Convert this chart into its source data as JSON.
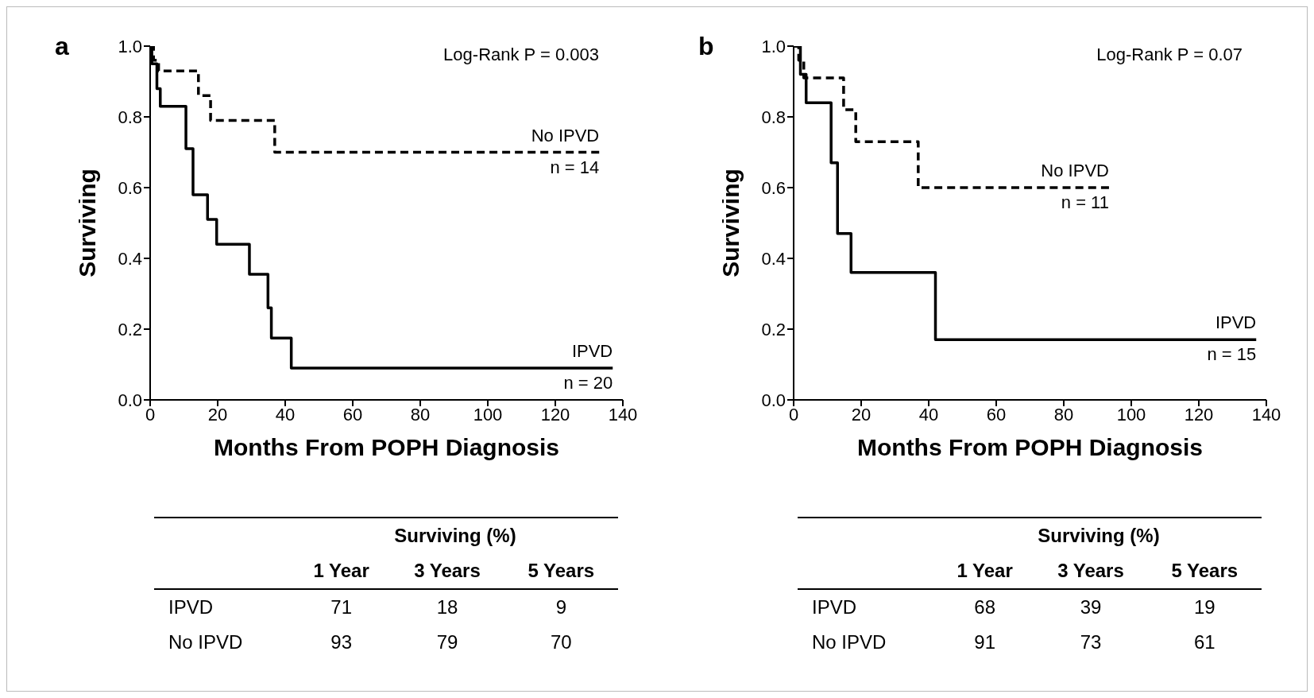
{
  "chart_data": [
    {
      "type": "step",
      "title": "a",
      "xlabel": "Months From POPH Diagnosis",
      "ylabel": "Surviving",
      "xlim": [
        0,
        140
      ],
      "xticks": [
        0,
        20,
        40,
        60,
        80,
        100,
        120,
        140
      ],
      "ylim": [
        0,
        1
      ],
      "yticks": [
        {
          "value": 0,
          "label": "0.0"
        },
        {
          "value": 0.2,
          "label": "0.2"
        },
        {
          "value": 0.4,
          "label": "0.4"
        },
        {
          "value": 0.6,
          "label": "0.6"
        },
        {
          "value": 0.8,
          "label": "0.8"
        },
        {
          "value": 1,
          "label": "1.0"
        }
      ],
      "grid": false,
      "legend": false,
      "series": [
        {
          "name": "IPVD",
          "color": "#000000",
          "line_style": "solid",
          "x": [
            0,
            0.5,
            2,
            3,
            10.6,
            12.7,
            17,
            19.7,
            29.4,
            34.9,
            35.9,
            41.8,
            137
          ],
          "values": [
            1,
            0.95,
            0.88,
            0.83,
            0.71,
            0.58,
            0.51,
            0.44,
            0.355,
            0.26,
            0.175,
            0.09,
            0.09
          ]
        },
        {
          "name": "No IPVD",
          "color": "#000000",
          "line_style": "dashed",
          "x": [
            0,
            1,
            2.5,
            14.3,
            17.9,
            36.9,
            133
          ],
          "values": [
            1,
            0.96,
            0.93,
            0.86,
            0.79,
            0.7,
            0.7
          ]
        }
      ],
      "annotations": [
        "Log-Rank P = 0.003",
        {
          "text": "n = 14",
          "x": 133,
          "y": 0.7
        },
        {
          "text": "n = 20",
          "x": 137,
          "y": 0.09
        }
      ]
    },
    {
      "type": "step",
      "title": "b",
      "xlabel": "Months From POPH Diagnosis",
      "ylabel": "Surviving",
      "xlim": [
        0,
        140
      ],
      "xticks": [
        0,
        20,
        40,
        60,
        80,
        100,
        120,
        140
      ],
      "ylim": [
        0,
        1
      ],
      "yticks": [
        {
          "value": 0,
          "label": "0.0"
        },
        {
          "value": 0.2,
          "label": "0.2"
        },
        {
          "value": 0.4,
          "label": "0.4"
        },
        {
          "value": 0.6,
          "label": "0.6"
        },
        {
          "value": 0.8,
          "label": "0.8"
        },
        {
          "value": 1,
          "label": "1.0"
        }
      ],
      "grid": false,
      "legend": false,
      "series": [
        {
          "name": "IPVD",
          "color": "#000000",
          "line_style": "solid",
          "x": [
            0,
            2,
            3.7,
            11.1,
            13,
            17,
            42,
            137
          ],
          "values": [
            1,
            0.92,
            0.84,
            0.67,
            0.47,
            0.36,
            0.17,
            0.17
          ]
        },
        {
          "name": "No IPVD",
          "color": "#000000",
          "line_style": "dashed",
          "x": [
            0,
            1.5,
            3,
            14.8,
            18.4,
            36.9,
            93.4
          ],
          "values": [
            1,
            0.96,
            0.91,
            0.82,
            0.73,
            0.6,
            0.6
          ]
        }
      ],
      "annotations": [
        "Log-Rank P = 0.07",
        {
          "text": "n = 11",
          "x": 93.4,
          "y": 0.6
        },
        {
          "text": "n = 15",
          "x": 137,
          "y": 0.17
        }
      ]
    },
    {
      "type": "other",
      "title": "Surviving (%)",
      "categories": [
        "1 Year",
        "3 Years",
        "5 Years"
      ],
      "data_labels": true,
      "series": [
        {
          "name": "IPVD",
          "values": [
            71,
            18,
            9
          ]
        },
        {
          "name": "No IPVD",
          "values": [
            93,
            79,
            70
          ]
        }
      ]
    },
    {
      "type": "other",
      "title": "Surviving (%)",
      "categories": [
        "1 Year",
        "3 Years",
        "5 Years"
      ],
      "data_labels": true,
      "series": [
        {
          "name": "IPVD",
          "values": [
            68,
            39,
            19
          ]
        },
        {
          "name": "No IPVD",
          "values": [
            91,
            73,
            61
          ]
        }
      ]
    }
  ]
}
